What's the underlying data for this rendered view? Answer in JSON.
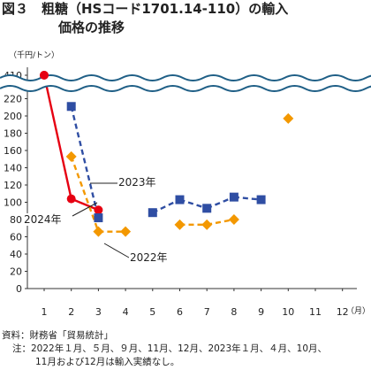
{
  "figure": {
    "title_line1": "図３　粗糖（HSコード1701.14-110）の輸入",
    "title_line2": "価格の推移",
    "unit": "（千円/トン）",
    "source": "資料：財務省「貿易統計」",
    "note_line1": "注：2022年１月、５月、９月、11月、12月、2023年１月、４月、10月、",
    "note_line2": "11月および12月は輸入実績なし。"
  },
  "annotations": {
    "y2023": "2023年",
    "y2024": "2024年",
    "y2022": "2022年"
  },
  "colors": {
    "axis": "#333333",
    "grid": "#cccccc",
    "break_band": "#1f5f86",
    "s2024": "#e60012",
    "s2023": "#2f4ea3",
    "s2022": "#f39800"
  },
  "chart_data": {
    "type": "line",
    "title": "粗糖（HSコード1701.14-110）の輸入価格の推移",
    "ylabel": "（千円/トン）",
    "xlabel": "",
    "x_unit_label": "（月）",
    "x": [
      1,
      2,
      3,
      4,
      5,
      6,
      7,
      8,
      9,
      10,
      11,
      12
    ],
    "x_tick_labels": [
      "1",
      "2",
      "3",
      "4",
      "5",
      "6",
      "7",
      "8",
      "9",
      "10",
      "11",
      "12"
    ],
    "y_tick_labels": [
      "0",
      "20",
      "40",
      "60",
      "80",
      "100",
      "120",
      "140",
      "160",
      "180",
      "200",
      "220",
      "410"
    ],
    "ylim": [
      0,
      220
    ],
    "axis_break": {
      "low": 220,
      "high": 410
    },
    "grid": false,
    "series": [
      {
        "name": "2024年",
        "marker": "circle",
        "line": "solid",
        "points": [
          {
            "x": 1,
            "y": 410
          },
          {
            "x": 2,
            "y": 104
          },
          {
            "x": 3,
            "y": 91
          }
        ]
      },
      {
        "name": "2023年",
        "marker": "square",
        "line": "dashed",
        "points": [
          {
            "x": 2,
            "y": 211
          },
          {
            "x": 3,
            "y": 82
          },
          {
            "x": 5,
            "y": 88
          },
          {
            "x": 6,
            "y": 103
          },
          {
            "x": 7,
            "y": 93
          },
          {
            "x": 8,
            "y": 106
          },
          {
            "x": 9,
            "y": 103
          }
        ]
      },
      {
        "name": "2022年",
        "marker": "diamond",
        "line": "dashed",
        "points": [
          {
            "x": 2,
            "y": 153
          },
          {
            "x": 3,
            "y": 66
          },
          {
            "x": 4,
            "y": 66
          },
          {
            "x": 6,
            "y": 74
          },
          {
            "x": 7,
            "y": 74
          },
          {
            "x": 8,
            "y": 80
          },
          {
            "x": 10,
            "y": 197
          }
        ]
      }
    ]
  }
}
